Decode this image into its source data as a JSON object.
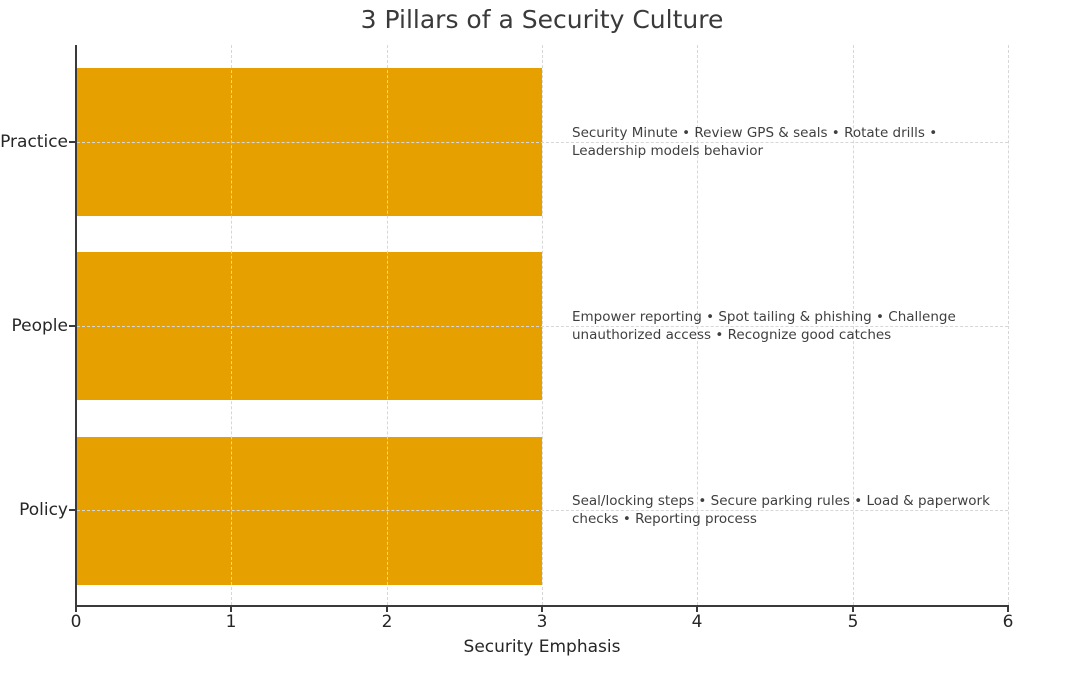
{
  "chart_data": {
    "type": "bar",
    "orientation": "horizontal",
    "title": "3 Pillars of a Security Culture",
    "xlabel": "Security Emphasis",
    "ylabel": "",
    "xlim": [
      0,
      6
    ],
    "xticks": [
      "0",
      "1",
      "2",
      "3",
      "4",
      "5",
      "6"
    ],
    "grid": true,
    "legend": false,
    "bar_color": "#E6A000",
    "grid_color": "#d7d7d7",
    "axis_color": "#3a3a3a",
    "text_color": "#3f3f3f",
    "categories": [
      "Practice",
      "People",
      "Policy"
    ],
    "values": [
      3,
      3,
      3
    ],
    "annotations": [
      {
        "category": "Practice",
        "text": "Security Minute • Review GPS & seals • Rotate drills • Leadership models behavior",
        "lines": [
          "Security Minute • Review GPS & seals • Rotate drills •",
          "Leadership models behavior"
        ]
      },
      {
        "category": "People",
        "text": "Empower reporting • Spot tailing & phishing • Challenge unauthorized access • Recognize good catches",
        "lines": [
          "Empower reporting • Spot tailing & phishing • Challenge",
          "unauthorized access • Recognize good catches"
        ]
      },
      {
        "category": "Policy",
        "text": "Seal/locking steps • Secure parking rules • Load & paperwork checks • Reporting process",
        "lines": [
          "Seal/locking steps • Secure parking rules • Load & paperwork",
          "checks • Reporting process"
        ]
      }
    ]
  }
}
